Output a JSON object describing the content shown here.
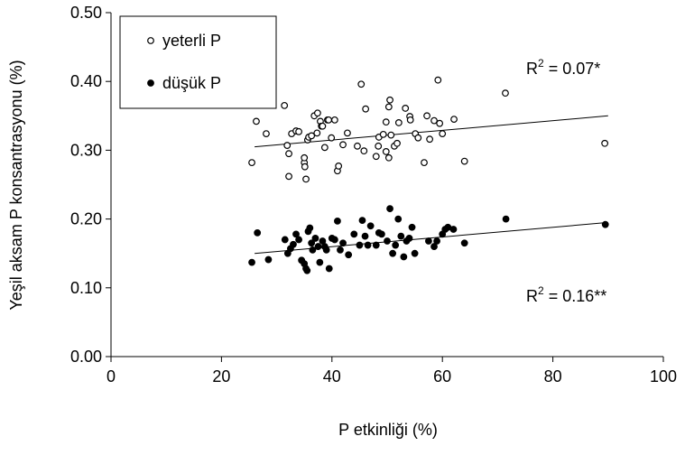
{
  "chart_data": {
    "type": "scatter",
    "x_label": "P etkinliği (%)",
    "y_label": "Yeşil aksam P konsantrasyonu (%)",
    "xlim": [
      0,
      100
    ],
    "xticks": [
      0,
      20,
      40,
      60,
      80,
      100
    ],
    "ylim": [
      0,
      0.5
    ],
    "yticks": [
      {
        "value": 0,
        "label": "0.00"
      },
      {
        "value": 0.1,
        "label": "0.10"
      },
      {
        "value": 0.2,
        "label": "0.20"
      },
      {
        "value": 0.3,
        "label": "0.30"
      },
      {
        "value": 0.4,
        "label": "0.40"
      },
      {
        "value": 0.5,
        "label": "0.50"
      }
    ],
    "legend": "top-left",
    "series": [
      {
        "name": "yeterli P",
        "marker": "open",
        "color": "#000000",
        "x": [
          25.5,
          26.3,
          28.1,
          31.4,
          31.9,
          32.2,
          32.7,
          33.5,
          32.2,
          34.0,
          35.0,
          35.0,
          35.1,
          35.3,
          35.6,
          35.8,
          36.3,
          36.8,
          37.3,
          37.4,
          37.9,
          38.1,
          38.3,
          38.7,
          39.2,
          39.4,
          39.9,
          40.5,
          41.0,
          41.2,
          42.0,
          42.8,
          44.6,
          45.3,
          45.8,
          46.1,
          48.0,
          48.4,
          48.5,
          49.3,
          49.8,
          49.8,
          50.3,
          50.3,
          50.5,
          50.7,
          51.3,
          51.8,
          52.1,
          53.3,
          54.1,
          54.2,
          55.1,
          55.6,
          56.7,
          57.2,
          57.7,
          58.5,
          59.2,
          59.5,
          60.0,
          62.1,
          64.0,
          71.4,
          89.4
        ],
        "values": [
          0.282,
          0.342,
          0.324,
          0.365,
          0.307,
          0.262,
          0.324,
          0.328,
          0.295,
          0.327,
          0.282,
          0.289,
          0.276,
          0.258,
          0.315,
          0.319,
          0.321,
          0.35,
          0.325,
          0.354,
          0.342,
          0.335,
          0.335,
          0.304,
          0.344,
          0.344,
          0.318,
          0.344,
          0.27,
          0.277,
          0.308,
          0.325,
          0.306,
          0.396,
          0.299,
          0.36,
          0.291,
          0.306,
          0.319,
          0.323,
          0.298,
          0.341,
          0.289,
          0.363,
          0.373,
          0.322,
          0.306,
          0.31,
          0.34,
          0.361,
          0.349,
          0.344,
          0.324,
          0.318,
          0.282,
          0.35,
          0.316,
          0.343,
          0.402,
          0.339,
          0.324,
          0.345,
          0.284,
          0.383,
          0.31
        ],
        "trend": {
          "x": [
            26,
            90
          ],
          "values": [
            0.305,
            0.35
          ]
        }
      },
      {
        "name": "düşük P",
        "marker": "filled",
        "color": "#000000",
        "x": [
          25.5,
          26.5,
          28.5,
          31.5,
          32,
          32.5,
          33,
          33.5,
          34,
          34.5,
          35,
          35.3,
          35.5,
          35.7,
          36,
          36.3,
          36.5,
          37,
          37.5,
          37.8,
          38.3,
          38.7,
          39,
          39.5,
          40,
          40.5,
          41,
          41.5,
          42,
          43,
          44,
          45,
          45.5,
          46,
          46.5,
          47,
          48,
          48.5,
          49,
          50,
          50.5,
          51,
          51.5,
          52,
          52.5,
          53,
          53.5,
          54,
          54.5,
          55,
          57.5,
          58.5,
          59,
          60,
          60.5,
          61,
          62,
          64,
          71.5,
          89.5
        ],
        "values": [
          0.137,
          0.18,
          0.141,
          0.17,
          0.15,
          0.157,
          0.163,
          0.178,
          0.17,
          0.14,
          0.135,
          0.128,
          0.125,
          0.182,
          0.187,
          0.165,
          0.155,
          0.172,
          0.16,
          0.137,
          0.168,
          0.16,
          0.155,
          0.128,
          0.172,
          0.17,
          0.197,
          0.155,
          0.165,
          0.148,
          0.178,
          0.162,
          0.198,
          0.175,
          0.162,
          0.19,
          0.162,
          0.18,
          0.178,
          0.168,
          0.215,
          0.15,
          0.162,
          0.2,
          0.175,
          0.145,
          0.168,
          0.172,
          0.188,
          0.15,
          0.168,
          0.16,
          0.168,
          0.178,
          0.185,
          0.188,
          0.185,
          0.165,
          0.2,
          0.192
        ],
        "trend": {
          "x": [
            26,
            90
          ],
          "values": [
            0.15,
            0.195
          ]
        }
      }
    ],
    "annotations": [
      {
        "parts": [
          "R",
          "2",
          " = 0.07*"
        ]
      },
      {
        "parts": [
          "R",
          "2",
          " = 0.16**"
        ]
      }
    ]
  }
}
